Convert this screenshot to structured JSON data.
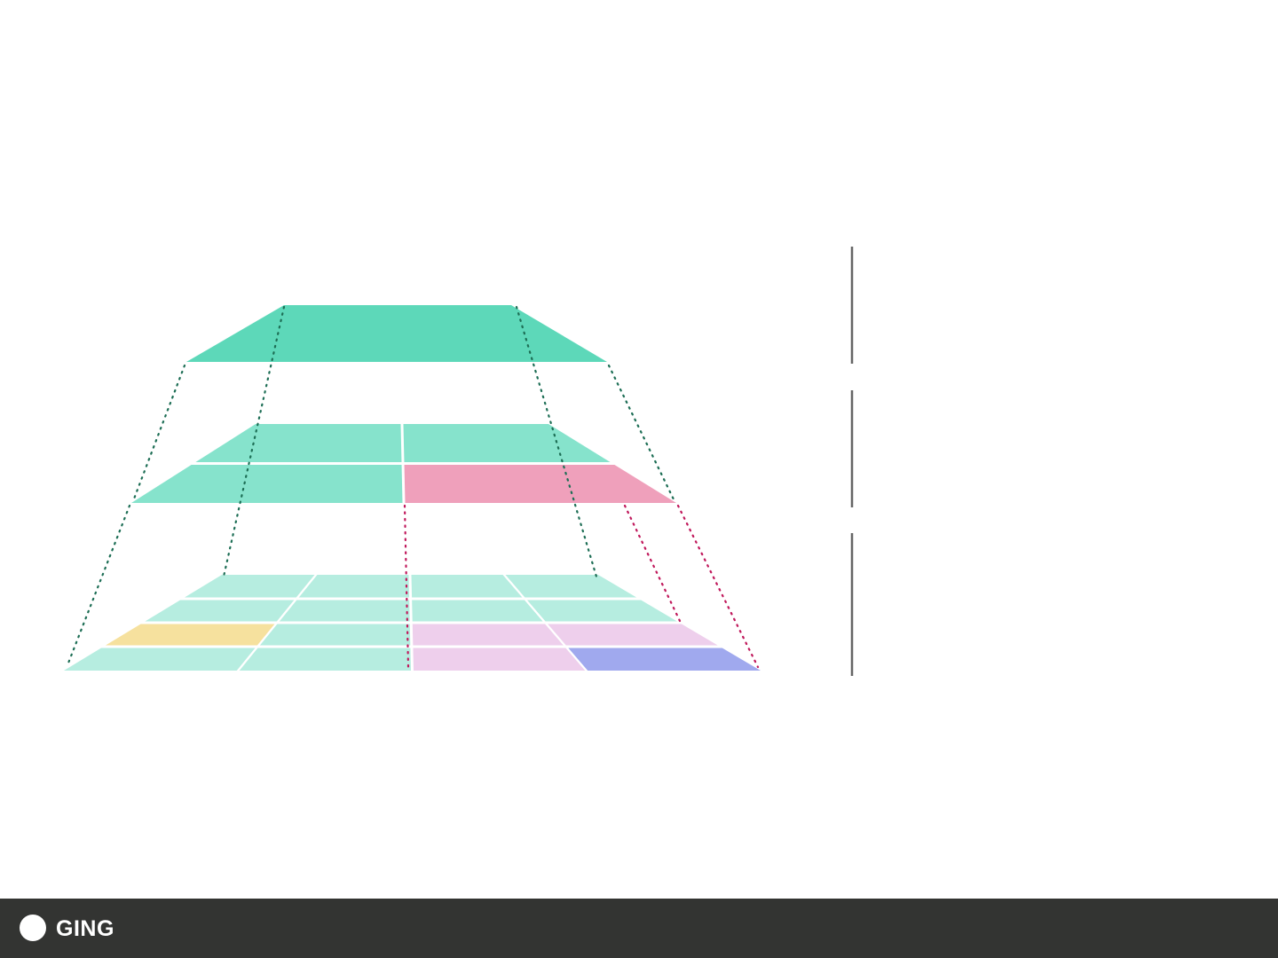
{
  "brand": {
    "label": "GING"
  },
  "colors": {
    "top_tier": "#5dd8b9",
    "middle_tier": "#86e3cc",
    "middle_highlight": "#efa0bb",
    "bottom_tier": "#b6ede0",
    "bottom_yellow": "#f6e19e",
    "bottom_pink": "#eecfec",
    "bottom_blue": "#a0a9ee",
    "link_green": "#1d6e55",
    "link_red": "#c0185b",
    "divider": "#666666",
    "bar": "#333432"
  },
  "diagram": {
    "tiers": [
      {
        "name": "top",
        "rows": 1,
        "cols": 1,
        "cells": [
          [
            "top_tier"
          ]
        ]
      },
      {
        "name": "middle",
        "rows": 2,
        "cols": 2,
        "cells": [
          [
            "middle_tier",
            "middle_tier"
          ],
          [
            "middle_tier",
            "middle_highlight"
          ]
        ]
      },
      {
        "name": "bottom",
        "rows": 4,
        "cols": 4,
        "cells": [
          [
            "bottom_tier",
            "bottom_tier",
            "bottom_tier",
            "bottom_tier"
          ],
          [
            "bottom_tier",
            "bottom_tier",
            "bottom_tier",
            "bottom_tier"
          ],
          [
            "bottom_yellow",
            "bottom_tier",
            "bottom_pink",
            "bottom_pink"
          ],
          [
            "bottom_tier",
            "bottom_tier",
            "bottom_pink",
            "bottom_blue"
          ]
        ]
      }
    ],
    "dividers": 3
  }
}
